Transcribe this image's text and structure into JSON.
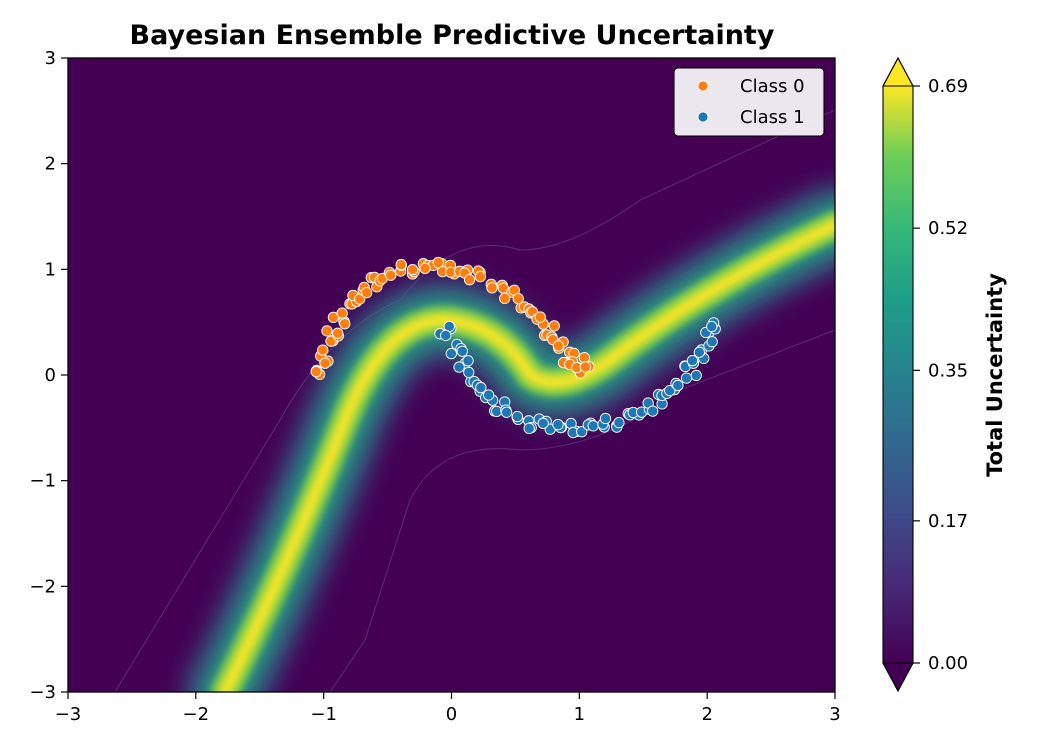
{
  "chart_data": {
    "type": "scatter",
    "title": "Bayesian Ensemble Predictive Uncertainty",
    "xlabel": "",
    "ylabel": "",
    "xlim": [
      -3,
      3
    ],
    "ylim": [
      -3,
      3
    ],
    "x_ticks": [
      "−3",
      "−2",
      "−1",
      "0",
      "1",
      "2",
      "3"
    ],
    "y_ticks": [
      "−3",
      "−2",
      "−1",
      "0",
      "1",
      "2",
      "3"
    ],
    "grid": false,
    "legend_position": "top-right",
    "background": "filled contour of total predictive uncertainty (viridis), high along the decision boundary between the two moons",
    "colorbar": {
      "label": "Total Uncertainty",
      "colormap": "viridis",
      "range": [
        0.0,
        0.69
      ],
      "tick_labels": [
        "0.00",
        "0.17",
        "0.35",
        "0.52",
        "0.69"
      ],
      "tick_values": [
        0.0,
        0.17,
        0.35,
        0.52,
        0.69
      ],
      "extend": "both"
    },
    "series": [
      {
        "name": "Class 0",
        "color": "#ff7f0e",
        "shape": "upper moon",
        "x": [
          -1.05,
          -1.0,
          -0.97,
          -0.93,
          -0.88,
          -0.82,
          -0.75,
          -0.68,
          -0.6,
          -0.52,
          -0.44,
          -0.35,
          -0.26,
          -0.17,
          -0.08,
          0.0,
          0.09,
          0.18,
          0.27,
          0.36,
          0.45,
          0.54,
          0.62,
          0.7,
          0.77,
          0.83,
          0.88,
          0.92,
          0.96,
          1.0,
          1.05
        ],
        "y": [
          0.03,
          0.15,
          0.28,
          0.4,
          0.52,
          0.63,
          0.73,
          0.81,
          0.88,
          0.93,
          0.97,
          1.0,
          1.02,
          1.03,
          1.02,
          1.0,
          0.98,
          0.94,
          0.89,
          0.83,
          0.76,
          0.68,
          0.6,
          0.51,
          0.42,
          0.33,
          0.24,
          0.16,
          0.09,
          0.04,
          0.12
        ]
      },
      {
        "name": "Class 1",
        "color": "#1f77b4",
        "shape": "lower moon",
        "x": [
          -0.05,
          0.0,
          0.04,
          0.09,
          0.15,
          0.22,
          0.3,
          0.38,
          0.47,
          0.56,
          0.65,
          0.75,
          0.85,
          0.95,
          1.05,
          1.15,
          1.25,
          1.35,
          1.45,
          1.55,
          1.64,
          1.72,
          1.8,
          1.87,
          1.93,
          1.98,
          2.02,
          2.05
        ],
        "y": [
          0.42,
          0.33,
          0.22,
          0.1,
          -0.02,
          -0.13,
          -0.22,
          -0.3,
          -0.37,
          -0.42,
          -0.46,
          -0.48,
          -0.49,
          -0.5,
          -0.5,
          -0.48,
          -0.45,
          -0.41,
          -0.36,
          -0.3,
          -0.23,
          -0.15,
          -0.06,
          0.04,
          0.14,
          0.25,
          0.36,
          0.47
        ]
      }
    ]
  }
}
